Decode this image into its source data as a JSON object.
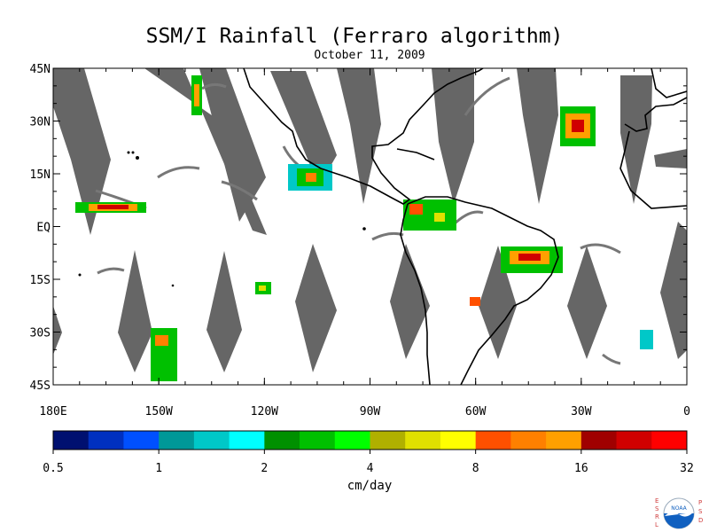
{
  "title": "SSM/I Rainfall (Ferraro algorithm)",
  "subtitle": "October 11, 2009",
  "map": {
    "lat_labels": [
      "45N",
      "30N",
      "15N",
      "EQ",
      "15S",
      "30S",
      "45S"
    ],
    "lon_labels": [
      "180E",
      "150W",
      "120W",
      "90W",
      "60W",
      "30W",
      "0"
    ],
    "swath_color": "#666666",
    "coast_color": "#000000"
  },
  "colorbar": {
    "colors": [
      "#001070",
      "#0030c0",
      "#0050ff",
      "#009898",
      "#00c8c8",
      "#00ffff",
      "#009000",
      "#00c000",
      "#00ff00",
      "#b0b000",
      "#e0e000",
      "#ffff00",
      "#ff5000",
      "#ff8000",
      "#ffa000",
      "#a00000",
      "#d00000",
      "#ff0000"
    ],
    "labels": [
      "0.5",
      "1",
      "2",
      "4",
      "8",
      "16",
      "32"
    ],
    "units": "cm/day"
  },
  "logo": {
    "left_letters": [
      "E",
      "S",
      "R",
      "L"
    ],
    "right_letters": [
      "P",
      "S",
      "D"
    ],
    "name": "NOAA",
    "colors": {
      "letters": "#d04040",
      "ring": "#1060c0"
    }
  }
}
